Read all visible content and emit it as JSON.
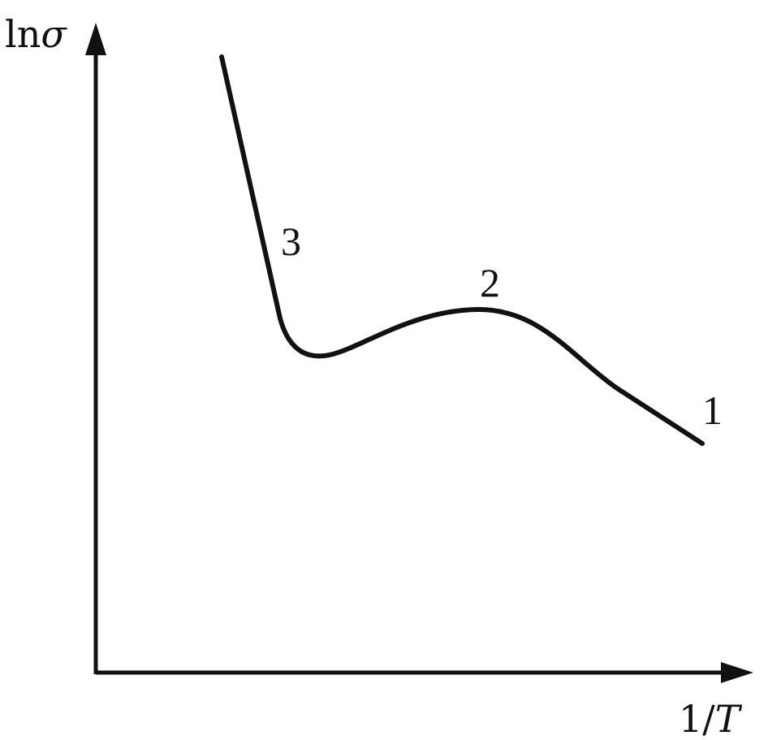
{
  "chart_data": {
    "type": "line",
    "title": "",
    "axes": {
      "y": {
        "label": {
          "prefix": "ln",
          "symbol": "σ"
        },
        "ticks": [],
        "grid": false
      },
      "x": {
        "label": {
          "prefix": "1/",
          "symbol": "T"
        },
        "ticks": [],
        "grid": false
      }
    },
    "legend": "none",
    "series": [
      {
        "shape": "conductivity curve: steep drop, minimum, broad maximum, then linear decline",
        "segment_labels": [
          "3",
          "2",
          "1"
        ]
      }
    ],
    "color": "#111111"
  }
}
